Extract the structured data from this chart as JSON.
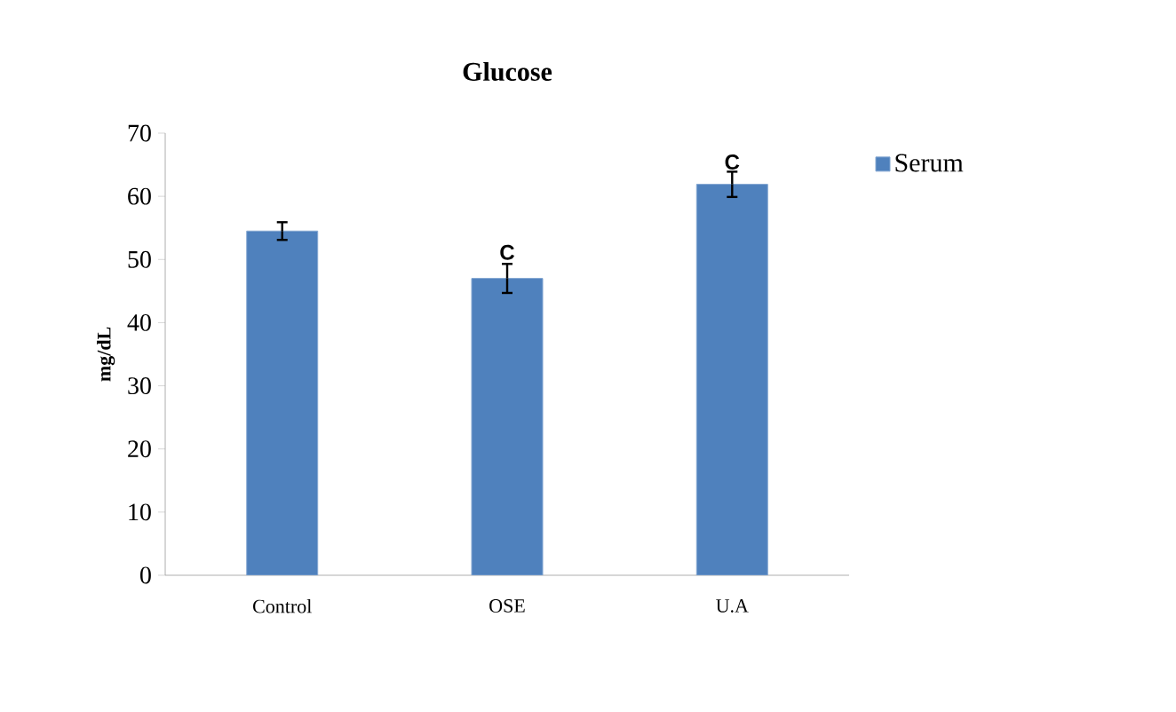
{
  "chart_data": {
    "type": "bar",
    "title": "Glucose",
    "ylabel": "mg/dL",
    "categories": [
      "Control",
      "OSE",
      "U.A"
    ],
    "series": [
      {
        "name": "Serum",
        "color": "#4f81bd",
        "values": [
          54.5,
          47.0,
          61.9
        ],
        "errors": [
          1.4,
          2.3,
          2.0
        ]
      }
    ],
    "ylim": [
      0,
      70
    ],
    "yticks": [
      0,
      10,
      20,
      30,
      40,
      50,
      60,
      70
    ],
    "grid": false,
    "legend": "right",
    "annotations": [
      {
        "text": "C",
        "x": "OSE",
        "y": 49.6
      },
      {
        "text": "C",
        "x": "U.A",
        "y": 63.9
      }
    ]
  }
}
